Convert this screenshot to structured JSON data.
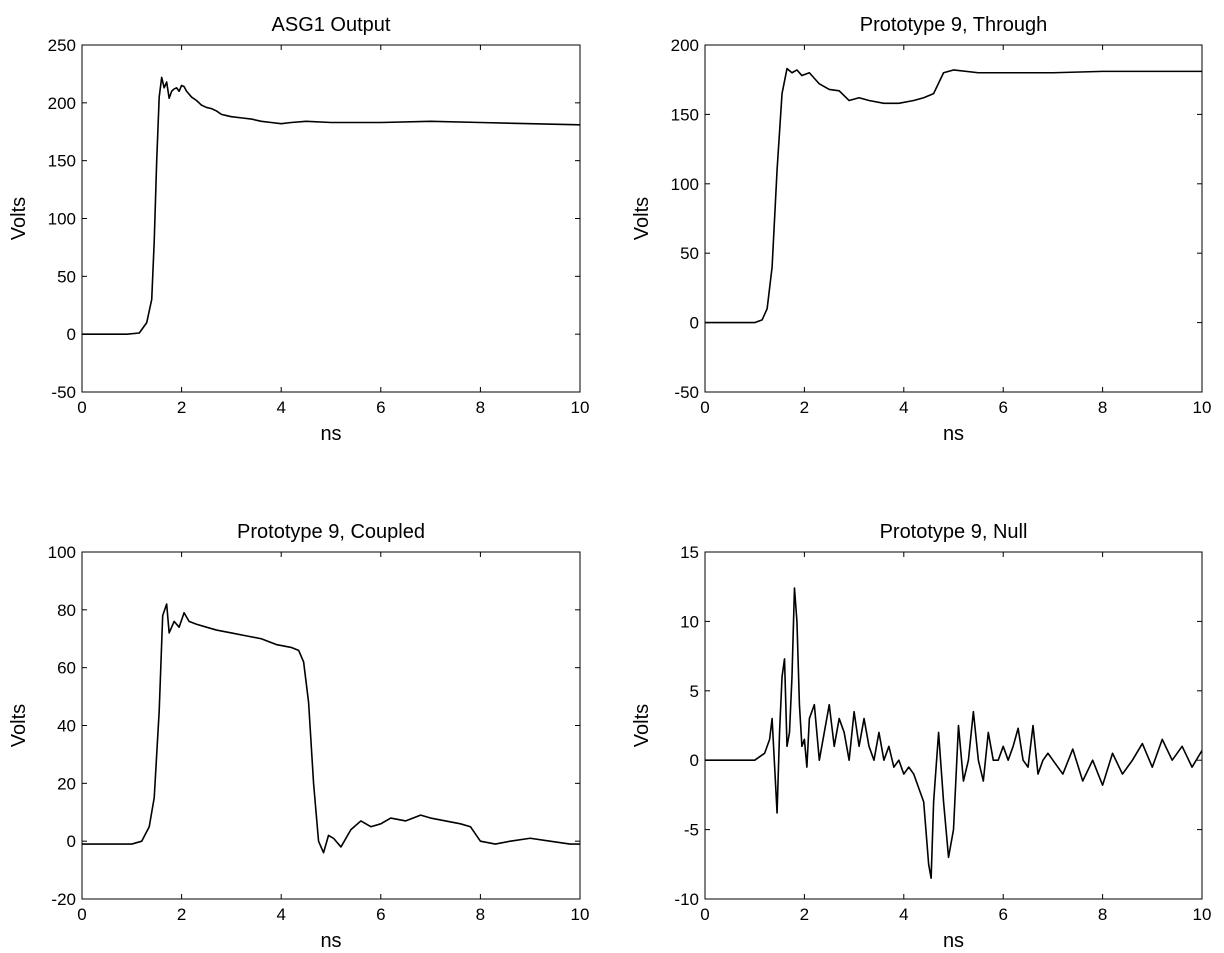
{
  "chart_data": [
    {
      "type": "line",
      "title": "ASG1 Output",
      "xlabel": "ns",
      "ylabel": "Volts",
      "xlim": [
        0,
        10
      ],
      "ylim": [
        -50,
        250
      ],
      "xticks": [
        0,
        2,
        4,
        6,
        8,
        10
      ],
      "yticks": [
        -50,
        0,
        50,
        100,
        150,
        200,
        250
      ],
      "grid": false,
      "series": [
        {
          "x": [
            0,
            0.3,
            0.6,
            0.9,
            1.15,
            1.3,
            1.4,
            1.45,
            1.5,
            1.55,
            1.6,
            1.65,
            1.7,
            1.75,
            1.8,
            1.85,
            1.9,
            1.95,
            2.0,
            2.05,
            2.1,
            2.2,
            2.3,
            2.4,
            2.5,
            2.6,
            2.7,
            2.8,
            2.9,
            3.0,
            3.2,
            3.4,
            3.6,
            3.8,
            4.0,
            4.2,
            4.5,
            5.0,
            6.0,
            7.0,
            8.0,
            9.0,
            10.0
          ],
          "y": [
            0,
            0,
            0,
            0,
            1,
            10,
            30,
            80,
            150,
            205,
            222,
            213,
            218,
            204,
            210,
            212,
            213,
            210,
            215,
            214,
            210,
            205,
            202,
            198,
            196,
            195,
            193,
            190,
            189,
            188,
            187,
            186,
            184,
            183,
            182,
            183,
            184,
            183,
            183,
            184,
            183,
            182,
            181
          ]
        }
      ]
    },
    {
      "type": "line",
      "title": "Prototype 9, Through",
      "xlabel": "ns",
      "ylabel": "Volts",
      "xlim": [
        0,
        10
      ],
      "ylim": [
        -50,
        200
      ],
      "xticks": [
        0,
        2,
        4,
        6,
        8,
        10
      ],
      "yticks": [
        -50,
        0,
        50,
        100,
        150,
        200
      ],
      "grid": false,
      "series": [
        {
          "x": [
            0,
            0.5,
            1.0,
            1.15,
            1.25,
            1.35,
            1.45,
            1.55,
            1.65,
            1.75,
            1.85,
            1.95,
            2.1,
            2.3,
            2.5,
            2.7,
            2.9,
            3.1,
            3.3,
            3.6,
            3.9,
            4.2,
            4.4,
            4.6,
            4.8,
            5.0,
            5.5,
            6.0,
            7.0,
            8.0,
            9.0,
            10.0
          ],
          "y": [
            0,
            0,
            0,
            2,
            10,
            40,
            110,
            165,
            183,
            180,
            182,
            178,
            180,
            172,
            168,
            167,
            160,
            162,
            160,
            158,
            158,
            160,
            162,
            165,
            180,
            182,
            180,
            180,
            180,
            181,
            181,
            181
          ]
        }
      ]
    },
    {
      "type": "line",
      "title": "Prototype 9, Coupled",
      "xlabel": "ns",
      "ylabel": "Volts",
      "xlim": [
        0,
        10
      ],
      "ylim": [
        -20,
        100
      ],
      "xticks": [
        0,
        2,
        4,
        6,
        8,
        10
      ],
      "yticks": [
        -20,
        0,
        20,
        40,
        60,
        80,
        100
      ],
      "grid": false,
      "series": [
        {
          "x": [
            0,
            0.5,
            1.0,
            1.2,
            1.35,
            1.45,
            1.55,
            1.62,
            1.7,
            1.75,
            1.85,
            1.95,
            2.05,
            2.15,
            2.3,
            2.5,
            2.7,
            3.0,
            3.3,
            3.6,
            3.9,
            4.2,
            4.35,
            4.45,
            4.55,
            4.65,
            4.75,
            4.85,
            4.95,
            5.05,
            5.2,
            5.4,
            5.6,
            5.8,
            6.0,
            6.2,
            6.5,
            6.8,
            7.0,
            7.3,
            7.6,
            7.8,
            8.0,
            8.3,
            8.6,
            9.0,
            9.4,
            9.8,
            10.0
          ],
          "y": [
            -1,
            -1,
            -1,
            0,
            5,
            15,
            45,
            78,
            82,
            72,
            76,
            74,
            79,
            76,
            75,
            74,
            73,
            72,
            71,
            70,
            68,
            67,
            66,
            62,
            48,
            20,
            0,
            -4,
            2,
            1,
            -2,
            4,
            7,
            5,
            6,
            8,
            7,
            9,
            8,
            7,
            6,
            5,
            0,
            -1,
            0,
            1,
            0,
            -1,
            -1
          ]
        }
      ]
    },
    {
      "type": "line",
      "title": "Prototype 9, Null",
      "xlabel": "ns",
      "ylabel": "Volts",
      "xlim": [
        0,
        10
      ],
      "ylim": [
        -10,
        15
      ],
      "xticks": [
        0,
        2,
        4,
        6,
        8,
        10
      ],
      "yticks": [
        -10,
        -5,
        0,
        5,
        10,
        15
      ],
      "grid": false,
      "series": [
        {
          "x": [
            0,
            0.5,
            1.0,
            1.2,
            1.3,
            1.35,
            1.45,
            1.5,
            1.55,
            1.6,
            1.65,
            1.7,
            1.75,
            1.8,
            1.85,
            1.9,
            1.95,
            2.0,
            2.05,
            2.1,
            2.2,
            2.3,
            2.4,
            2.5,
            2.6,
            2.7,
            2.8,
            2.9,
            3.0,
            3.1,
            3.2,
            3.3,
            3.4,
            3.5,
            3.6,
            3.7,
            3.8,
            3.9,
            4.0,
            4.1,
            4.2,
            4.3,
            4.4,
            4.5,
            4.55,
            4.6,
            4.7,
            4.8,
            4.9,
            5.0,
            5.1,
            5.2,
            5.3,
            5.4,
            5.5,
            5.6,
            5.7,
            5.8,
            5.9,
            6.0,
            6.1,
            6.2,
            6.3,
            6.4,
            6.5,
            6.6,
            6.7,
            6.8,
            6.9,
            7.0,
            7.2,
            7.4,
            7.6,
            7.8,
            8.0,
            8.2,
            8.4,
            8.6,
            8.8,
            9.0,
            9.2,
            9.4,
            9.6,
            9.8,
            10.0
          ],
          "y": [
            0,
            0,
            0,
            0.5,
            1.5,
            3,
            -3.8,
            2,
            6,
            7.3,
            1,
            2,
            6,
            12.4,
            10,
            4,
            1,
            1.5,
            -0.5,
            3,
            4,
            0,
            2,
            4,
            1,
            3,
            2,
            0,
            3.5,
            1,
            3,
            1,
            0,
            2,
            0,
            1,
            -0.5,
            0,
            -1,
            -0.5,
            -1,
            -2,
            -3,
            -7.5,
            -8.5,
            -3,
            2,
            -3,
            -7,
            -5,
            2.5,
            -1.5,
            0,
            3.5,
            0,
            -1.5,
            2,
            0,
            0,
            1,
            0,
            1,
            2.3,
            0,
            -0.5,
            2.5,
            -1,
            0,
            0.5,
            0,
            -1,
            0.8,
            -1.5,
            0,
            -1.8,
            0.5,
            -1,
            0,
            1.2,
            -0.5,
            1.5,
            0,
            1,
            -0.5,
            0.7
          ]
        }
      ]
    }
  ]
}
